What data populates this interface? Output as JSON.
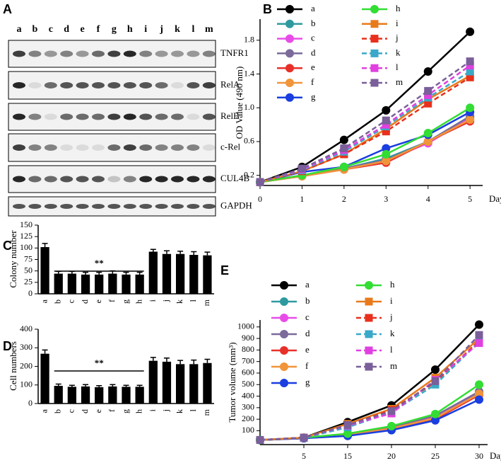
{
  "blot": {
    "panel": "A",
    "lanes": [
      "a",
      "b",
      "c",
      "d",
      "e",
      "f",
      "g",
      "h",
      "i",
      "j",
      "k",
      "l",
      "m"
    ],
    "proteins": [
      "TNFR1",
      "RelA",
      "RelB",
      "c-Rel",
      "CUL4B",
      "GAPDH"
    ]
  },
  "chart_data": [
    {
      "type": "line",
      "panel": "B",
      "y_label": "OD Value (490 nm)",
      "x_label": "Day",
      "x": [
        0,
        1,
        2,
        3,
        4,
        5
      ],
      "xlim": [
        0,
        5.3
      ],
      "xticks": [
        0,
        1,
        2,
        3,
        4,
        5
      ],
      "ylim": [
        0.08,
        2.05
      ],
      "yticks": [
        0.2,
        0.6,
        {
          "value": 1,
          "label": "1.0"
        },
        1.4,
        1.8
      ],
      "series": [
        {
          "name": "a",
          "color": "#000000",
          "marker": "circle",
          "dash": false,
          "values": [
            0.12,
            0.3,
            0.62,
            0.97,
            1.43,
            1.9
          ]
        },
        {
          "name": "b",
          "color": "#2e9aa0",
          "marker": "circle",
          "dash": false,
          "values": [
            0.12,
            0.2,
            0.28,
            0.4,
            0.6,
            0.9
          ]
        },
        {
          "name": "c",
          "color": "#e84ce8",
          "marker": "circle",
          "dash": false,
          "values": [
            0.12,
            0.2,
            0.28,
            0.38,
            0.58,
            0.88
          ]
        },
        {
          "name": "d",
          "color": "#7b6a9a",
          "marker": "circle",
          "dash": false,
          "values": [
            0.12,
            0.2,
            0.28,
            0.38,
            0.6,
            0.9
          ]
        },
        {
          "name": "e",
          "color": "#e8302a",
          "marker": "circle",
          "dash": false,
          "values": [
            0.12,
            0.19,
            0.27,
            0.35,
            0.6,
            0.84
          ]
        },
        {
          "name": "f",
          "color": "#f0953a",
          "marker": "circle",
          "dash": false,
          "values": [
            0.12,
            0.19,
            0.27,
            0.37,
            0.6,
            0.86
          ]
        },
        {
          "name": "g",
          "color": "#1a3ee0",
          "marker": "circle",
          "dash": false,
          "values": [
            0.12,
            0.24,
            0.3,
            0.52,
            0.68,
            0.95
          ]
        },
        {
          "name": "h",
          "color": "#33dd33",
          "marker": "circle",
          "dash": false,
          "values": [
            0.12,
            0.2,
            0.3,
            0.45,
            0.7,
            1.0
          ]
        },
        {
          "name": "i",
          "color": "#e87a1c",
          "marker": "square",
          "dash": false,
          "values": [
            0.12,
            0.25,
            0.45,
            0.75,
            1.1,
            1.38
          ]
        },
        {
          "name": "j",
          "color": "#e8301c",
          "marker": "square",
          "dash": true,
          "values": [
            0.12,
            0.25,
            0.45,
            0.72,
            1.05,
            1.36
          ]
        },
        {
          "name": "k",
          "color": "#3aa8c8",
          "marker": "square",
          "dash": true,
          "values": [
            0.12,
            0.26,
            0.48,
            0.78,
            1.12,
            1.43
          ]
        },
        {
          "name": "l",
          "color": "#e040e0",
          "marker": "square",
          "dash": true,
          "values": [
            0.12,
            0.27,
            0.5,
            0.8,
            1.15,
            1.5
          ]
        },
        {
          "name": "m",
          "color": "#7a5f9a",
          "marker": "square",
          "dash": true,
          "values": [
            0.12,
            0.28,
            0.52,
            0.85,
            1.2,
            1.55
          ]
        }
      ]
    },
    {
      "type": "bar",
      "panel": "C",
      "y_label": "Colony number",
      "annotation": "**",
      "color": "#000000",
      "categories": [
        "a",
        "b",
        "c",
        "d",
        "e",
        "f",
        "g",
        "h",
        "i",
        "j",
        "k",
        "l",
        "m"
      ],
      "values": [
        102,
        44,
        44,
        42,
        42,
        44,
        42,
        42,
        92,
        87,
        87,
        85,
        84
      ],
      "errors": [
        8,
        5,
        5,
        5,
        5,
        6,
        5,
        5,
        5,
        7,
        6,
        7,
        7
      ],
      "ylim": [
        0,
        150
      ],
      "yticks": [
        0,
        25,
        50,
        75,
        100,
        125,
        150
      ]
    },
    {
      "type": "bar",
      "panel": "D",
      "y_label": "Cell numbers",
      "annotation": "**",
      "color": "#000000",
      "categories": [
        "a",
        "b",
        "c",
        "d",
        "e",
        "f",
        "g",
        "h",
        "i",
        "j",
        "k",
        "l",
        "m"
      ],
      "values": [
        268,
        95,
        90,
        92,
        88,
        92,
        90,
        90,
        230,
        225,
        212,
        212,
        218
      ],
      "errors": [
        20,
        10,
        8,
        10,
        8,
        10,
        8,
        8,
        18,
        20,
        20,
        22,
        20
      ],
      "ylim": [
        0,
        400
      ],
      "yticks": [
        0,
        100,
        200,
        300,
        400
      ]
    },
    {
      "type": "line",
      "panel": "E",
      "y_label": "Tumor volume (mm³)",
      "x_label": "Day",
      "categories": [
        null,
        "5",
        "15",
        "20",
        "25",
        "30"
      ],
      "ylim": [
        -20,
        1060
      ],
      "yticks": [
        100,
        200,
        300,
        400,
        500,
        600,
        700,
        800,
        900,
        1000
      ],
      "series": [
        {
          "name": "a",
          "color": "#000000",
          "marker": "circle",
          "dash": false,
          "values": [
            20,
            40,
            175,
            320,
            630,
            1020
          ]
        },
        {
          "name": "b",
          "color": "#2e9aa0",
          "marker": "circle",
          "dash": false,
          "values": [
            20,
            35,
            70,
            120,
            220,
            430
          ]
        },
        {
          "name": "c",
          "color": "#e84ce8",
          "marker": "circle",
          "dash": false,
          "values": [
            20,
            35,
            65,
            125,
            220,
            420
          ]
        },
        {
          "name": "d",
          "color": "#7b6a9a",
          "marker": "circle",
          "dash": false,
          "values": [
            20,
            35,
            70,
            130,
            230,
            440
          ]
        },
        {
          "name": "e",
          "color": "#e8302a",
          "marker": "circle",
          "dash": false,
          "values": [
            20,
            35,
            65,
            115,
            200,
            410
          ]
        },
        {
          "name": "f",
          "color": "#f0953a",
          "marker": "circle",
          "dash": false,
          "values": [
            20,
            35,
            65,
            120,
            210,
            420
          ]
        },
        {
          "name": "g",
          "color": "#1a3ee0",
          "marker": "circle",
          "dash": false,
          "values": [
            20,
            35,
            55,
            105,
            190,
            370
          ]
        },
        {
          "name": "h",
          "color": "#33dd33",
          "marker": "circle",
          "dash": false,
          "values": [
            20,
            40,
            75,
            140,
            245,
            500
          ]
        },
        {
          "name": "i",
          "color": "#e87a1c",
          "marker": "square",
          "dash": false,
          "values": [
            20,
            40,
            160,
            290,
            560,
            900
          ]
        },
        {
          "name": "j",
          "color": "#e8301c",
          "marker": "square",
          "dash": true,
          "values": [
            20,
            40,
            150,
            280,
            520,
            880
          ]
        },
        {
          "name": "k",
          "color": "#3aa8c8",
          "marker": "square",
          "dash": true,
          "values": [
            20,
            38,
            130,
            260,
            500,
            870
          ]
        },
        {
          "name": "l",
          "color": "#e040e0",
          "marker": "square",
          "dash": true,
          "values": [
            20,
            40,
            145,
            250,
            540,
            860
          ]
        },
        {
          "name": "m",
          "color": "#7a5f9a",
          "marker": "square",
          "dash": true,
          "values": [
            20,
            40,
            150,
            270,
            530,
            930
          ]
        }
      ]
    }
  ]
}
